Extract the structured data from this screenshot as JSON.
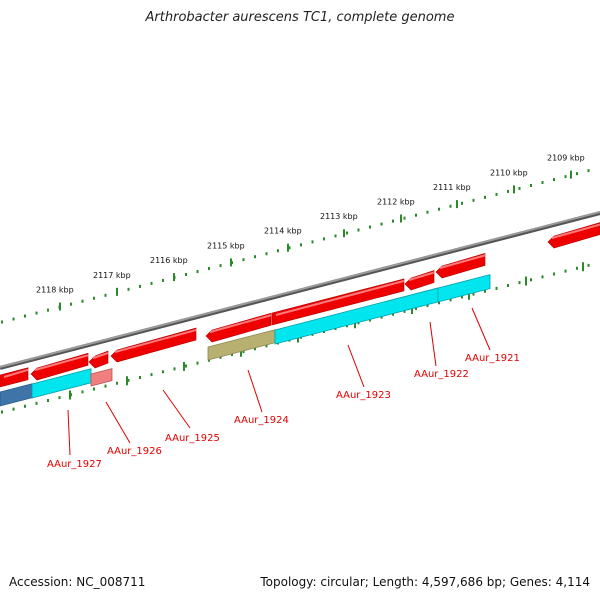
{
  "title": "Arthrobacter aurescens TC1, complete genome",
  "footer": {
    "accession": "Accession: NC_008711",
    "summary": "Topology: circular; Length: 4,597,686 bp; Genes: 4,114"
  },
  "colors": {
    "backbone": "#7a7a7a",
    "gene_red": "#ee0000",
    "gene_red_light": "#f08080",
    "cds_cyan": "#00e5ee",
    "cds_blue": "#3f74a8",
    "cds_olive": "#b8b070",
    "tick_green": "#2a8a2a",
    "label_red": "#e00000"
  },
  "kbp_ticks": [
    "2109 kbp",
    "2110 kbp",
    "2111 kbp",
    "2112 kbp",
    "2113 kbp",
    "2114 kbp",
    "2115 kbp",
    "2116 kbp",
    "2117 kbp",
    "2118 kbp"
  ],
  "gene_labels": [
    "AAur_1921",
    "AAur_1922",
    "AAur_1923",
    "AAur_1924",
    "AAur_1925",
    "AAur_1926",
    "AAur_1927"
  ]
}
